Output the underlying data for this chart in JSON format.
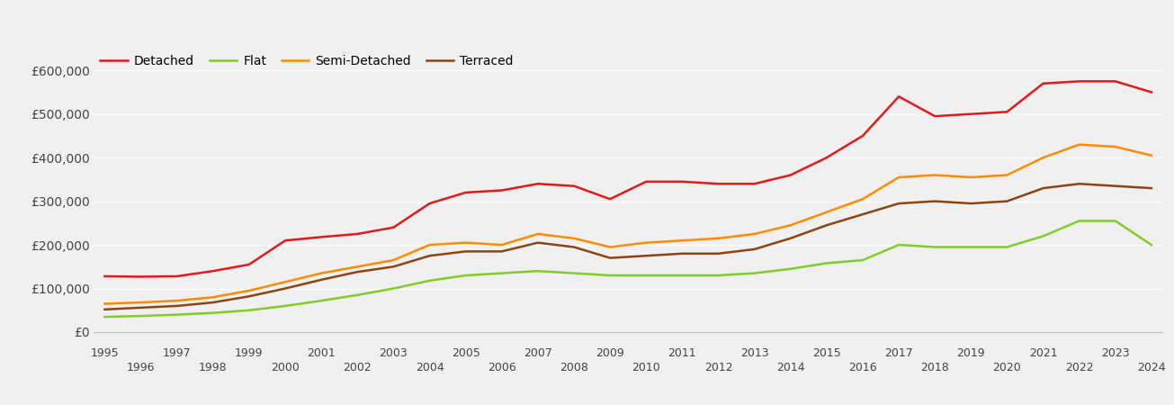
{
  "years": [
    1995,
    1996,
    1997,
    1998,
    1999,
    2000,
    2001,
    2002,
    2003,
    2004,
    2005,
    2006,
    2007,
    2008,
    2009,
    2010,
    2011,
    2012,
    2013,
    2014,
    2015,
    2016,
    2017,
    2018,
    2019,
    2020,
    2021,
    2022,
    2023,
    2024
  ],
  "detached": [
    128000,
    127000,
    128000,
    140000,
    155000,
    210000,
    218000,
    225000,
    240000,
    295000,
    320000,
    325000,
    340000,
    335000,
    305000,
    345000,
    345000,
    340000,
    340000,
    360000,
    400000,
    450000,
    540000,
    495000,
    500000,
    505000,
    570000,
    575000,
    575000,
    550000
  ],
  "flat": [
    35000,
    37000,
    40000,
    44000,
    50000,
    60000,
    72000,
    85000,
    100000,
    118000,
    130000,
    135000,
    140000,
    135000,
    130000,
    130000,
    130000,
    130000,
    135000,
    145000,
    158000,
    165000,
    200000,
    195000,
    195000,
    195000,
    220000,
    255000,
    255000,
    200000
  ],
  "semi_detached": [
    65000,
    68000,
    72000,
    80000,
    95000,
    115000,
    135000,
    150000,
    165000,
    200000,
    205000,
    200000,
    225000,
    215000,
    195000,
    205000,
    210000,
    215000,
    225000,
    245000,
    275000,
    305000,
    355000,
    360000,
    355000,
    360000,
    400000,
    430000,
    425000,
    405000
  ],
  "terraced": [
    52000,
    56000,
    60000,
    68000,
    82000,
    100000,
    120000,
    138000,
    150000,
    175000,
    185000,
    185000,
    205000,
    195000,
    170000,
    175000,
    180000,
    180000,
    190000,
    215000,
    245000,
    270000,
    295000,
    300000,
    295000,
    300000,
    330000,
    340000,
    335000,
    330000
  ],
  "colors": {
    "detached": "#e31a1c",
    "flat": "#80cc28",
    "semi_detached": "#ff8c00",
    "terraced": "#8b4513"
  },
  "ylim": [
    0,
    650000
  ],
  "yticks": [
    0,
    100000,
    200000,
    300000,
    400000,
    500000,
    600000
  ],
  "ytick_labels": [
    "£0",
    "£100,000",
    "£200,000",
    "£300,000",
    "£400,000",
    "£500,000",
    "£600,000"
  ],
  "legend_labels": [
    "Detached",
    "Flat",
    "Semi-Detached",
    "Terraced"
  ],
  "background_color": "#f0f0f0",
  "grid_color": "#ffffff",
  "line_width": 1.8
}
